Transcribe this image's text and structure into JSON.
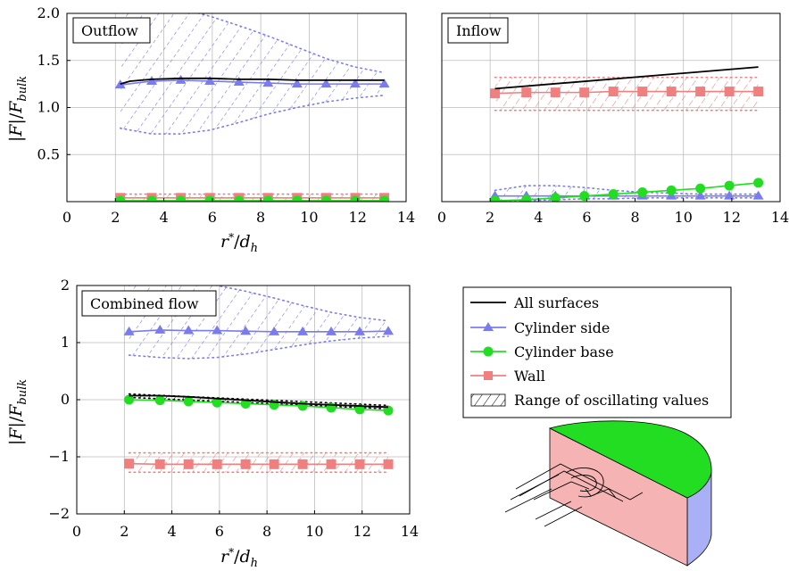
{
  "colors": {
    "all_surfaces": "#000000",
    "cylinder_side": "#7b7bf0",
    "cylinder_base": "#22dd22",
    "wall": "#f08080",
    "grid": "#bdbdbd"
  },
  "legend": {
    "items": [
      {
        "key": "all_surfaces",
        "label": "All surfaces"
      },
      {
        "key": "cylinder_side",
        "label": "Cylinder side"
      },
      {
        "key": "cylinder_base",
        "label": "Cylinder base"
      },
      {
        "key": "wall",
        "label": "Wall"
      },
      {
        "key": "range",
        "label": "Range of oscillating values"
      }
    ]
  },
  "axis_labels": {
    "x_top_left": "r*/dh",
    "x_bottom": "r*/dh",
    "y_top": "|F|/Fbulk",
    "y_bottom": "|F|/Fbulk"
  },
  "illustration": {
    "name": "cylinder-geometry-illustration"
  },
  "chart_data": [
    {
      "id": "outflow",
      "type": "line",
      "title": "Outflow",
      "xlim": [
        0,
        14
      ],
      "ylim": [
        0,
        2.0
      ],
      "xticks": [
        0,
        2,
        4,
        6,
        8,
        10,
        12,
        14
      ],
      "yticks": [
        0.5,
        1.0,
        1.5,
        2.0
      ],
      "ytick_labels": [
        "0.5",
        "1.0",
        "1.5",
        "2.0"
      ],
      "grid": true,
      "series": [
        {
          "key": "all_surfaces",
          "name": "All surfaces",
          "x": [
            2.2,
            2.6,
            3.5,
            4.7,
            5.9,
            7.1,
            8.3,
            9.5,
            10.7,
            11.9,
            13.1
          ],
          "y": [
            1.25,
            1.28,
            1.3,
            1.31,
            1.31,
            1.3,
            1.3,
            1.29,
            1.29,
            1.29,
            1.29
          ]
        },
        {
          "key": "cylinder_side",
          "name": "Cylinder side",
          "x": [
            2.2,
            3.5,
            4.7,
            5.9,
            7.1,
            8.3,
            9.5,
            10.7,
            11.9,
            13.1
          ],
          "y": [
            1.24,
            1.28,
            1.29,
            1.28,
            1.27,
            1.26,
            1.25,
            1.25,
            1.25,
            1.25
          ]
        },
        {
          "key": "cylinder_base",
          "name": "Cylinder base",
          "x": [
            2.2,
            3.5,
            4.7,
            5.9,
            7.1,
            8.3,
            9.5,
            10.7,
            11.9,
            13.1
          ],
          "y": [
            0.01,
            0.01,
            0.01,
            0.01,
            0.01,
            0.01,
            0.01,
            0.01,
            0.01,
            0.01
          ]
        },
        {
          "key": "wall",
          "name": "Wall",
          "x": [
            2.2,
            3.5,
            4.7,
            5.9,
            7.1,
            8.3,
            9.5,
            10.7,
            11.9,
            13.1
          ],
          "y": [
            0.04,
            0.04,
            0.04,
            0.04,
            0.04,
            0.04,
            0.04,
            0.04,
            0.04,
            0.04
          ]
        }
      ],
      "ranges": [
        {
          "key": "cylinder_side",
          "x": [
            2.2,
            3.5,
            4.7,
            5.9,
            7.1,
            8.3,
            9.5,
            10.7,
            11.9,
            13.1
          ],
          "lower": [
            0.78,
            0.72,
            0.72,
            0.76,
            0.84,
            0.93,
            1.0,
            1.06,
            1.1,
            1.13
          ],
          "upper": [
            2.05,
            2.08,
            2.05,
            1.97,
            1.87,
            1.76,
            1.64,
            1.52,
            1.43,
            1.37
          ]
        },
        {
          "key": "wall",
          "x": [
            2.2,
            13.1
          ],
          "lower": [
            0.0,
            0.0
          ],
          "upper": [
            0.08,
            0.08
          ]
        }
      ]
    },
    {
      "id": "inflow",
      "type": "line",
      "title": "Inflow",
      "xlim": [
        0,
        14
      ],
      "ylim": [
        0,
        2.0
      ],
      "xticks": [
        0,
        2,
        4,
        6,
        8,
        10,
        12,
        14
      ],
      "yticks": [],
      "ytick_labels": [],
      "grid": true,
      "series": [
        {
          "key": "all_surfaces",
          "name": "All surfaces",
          "x": [
            2.2,
            13.1
          ],
          "y": [
            1.2,
            1.43
          ]
        },
        {
          "key": "cylinder_side",
          "name": "Cylinder side",
          "x": [
            2.2,
            3.5,
            4.7,
            5.9,
            7.1,
            8.3,
            9.5,
            10.7,
            11.9,
            13.1
          ],
          "y": [
            0.06,
            0.06,
            0.06,
            0.06,
            0.06,
            0.06,
            0.06,
            0.06,
            0.06,
            0.06
          ]
        },
        {
          "key": "cylinder_base",
          "name": "Cylinder base",
          "x": [
            2.2,
            3.5,
            4.7,
            5.9,
            7.1,
            8.3,
            9.5,
            10.7,
            11.9,
            13.1
          ],
          "y": [
            0.01,
            0.02,
            0.04,
            0.06,
            0.08,
            0.1,
            0.12,
            0.14,
            0.17,
            0.2
          ]
        },
        {
          "key": "wall",
          "name": "Wall",
          "x": [
            2.2,
            3.5,
            4.7,
            5.9,
            7.1,
            8.3,
            9.5,
            10.7,
            11.9,
            13.1
          ],
          "y": [
            1.15,
            1.16,
            1.16,
            1.16,
            1.17,
            1.17,
            1.17,
            1.17,
            1.17,
            1.17
          ]
        }
      ],
      "ranges": [
        {
          "key": "wall",
          "x": [
            2.2,
            13.1
          ],
          "lower": [
            0.97,
            0.97
          ],
          "upper": [
            1.32,
            1.32
          ]
        },
        {
          "key": "cylinder_side",
          "x": [
            2.2,
            3.5,
            4.7,
            5.9,
            7.1,
            8.3,
            9.5,
            10.7,
            11.9,
            13.1
          ],
          "lower": [
            0.01,
            0.01,
            0.02,
            0.03,
            0.03,
            0.04,
            0.04,
            0.04,
            0.04,
            0.04
          ],
          "upper": [
            0.12,
            0.17,
            0.17,
            0.15,
            0.12,
            0.1,
            0.09,
            0.08,
            0.08,
            0.08
          ]
        }
      ]
    },
    {
      "id": "combined",
      "type": "line",
      "title": "Combined flow",
      "xlim": [
        0,
        14
      ],
      "ylim": [
        -2,
        2
      ],
      "xticks": [
        0,
        2,
        4,
        6,
        8,
        10,
        12,
        14
      ],
      "yticks": [
        -2,
        -1,
        0,
        1,
        2
      ],
      "ytick_labels": [
        "−2",
        "−1",
        "0",
        "1",
        "2"
      ],
      "grid": true,
      "series": [
        {
          "key": "all_surfaces",
          "name": "All surfaces",
          "x": [
            2.2,
            3.5,
            4.7,
            5.9,
            7.1,
            8.3,
            9.5,
            10.7,
            11.9,
            13.1
          ],
          "y": [
            0.07,
            0.07,
            0.05,
            0.02,
            -0.01,
            -0.04,
            -0.07,
            -0.09,
            -0.11,
            -0.13
          ]
        },
        {
          "key": "cylinder_side",
          "name": "Cylinder side",
          "x": [
            2.2,
            3.5,
            4.7,
            5.9,
            7.1,
            8.3,
            9.5,
            10.7,
            11.9,
            13.1
          ],
          "y": [
            1.19,
            1.22,
            1.21,
            1.21,
            1.2,
            1.19,
            1.19,
            1.19,
            1.19,
            1.2
          ]
        },
        {
          "key": "cylinder_base",
          "name": "Cylinder base",
          "x": [
            2.2,
            3.5,
            4.7,
            5.9,
            7.1,
            8.3,
            9.5,
            10.7,
            11.9,
            13.1
          ],
          "y": [
            0.0,
            -0.01,
            -0.03,
            -0.05,
            -0.07,
            -0.09,
            -0.11,
            -0.14,
            -0.17,
            -0.19
          ]
        },
        {
          "key": "wall",
          "name": "Wall",
          "x": [
            2.2,
            3.5,
            4.7,
            5.9,
            7.1,
            8.3,
            9.5,
            10.7,
            11.9,
            13.1
          ],
          "y": [
            -1.12,
            -1.13,
            -1.13,
            -1.13,
            -1.13,
            -1.13,
            -1.13,
            -1.13,
            -1.13,
            -1.13
          ]
        }
      ],
      "ranges": [
        {
          "key": "cylinder_side",
          "x": [
            2.2,
            3.5,
            4.7,
            5.9,
            7.1,
            8.3,
            9.5,
            10.7,
            11.9,
            13.1
          ],
          "lower": [
            0.78,
            0.74,
            0.72,
            0.74,
            0.8,
            0.88,
            0.96,
            1.03,
            1.08,
            1.11
          ],
          "upper": [
            2.0,
            2.15,
            2.08,
            2.0,
            1.9,
            1.78,
            1.65,
            1.53,
            1.44,
            1.38
          ]
        },
        {
          "key": "wall",
          "x": [
            2.2,
            13.1
          ],
          "lower": [
            -1.27,
            -1.27
          ],
          "upper": [
            -0.93,
            -0.93
          ]
        },
        {
          "key": "all_surfaces",
          "x": [
            2.2,
            13.1
          ],
          "lower": [
            0.04,
            -0.16
          ],
          "upper": [
            0.1,
            -0.1
          ]
        }
      ]
    }
  ]
}
